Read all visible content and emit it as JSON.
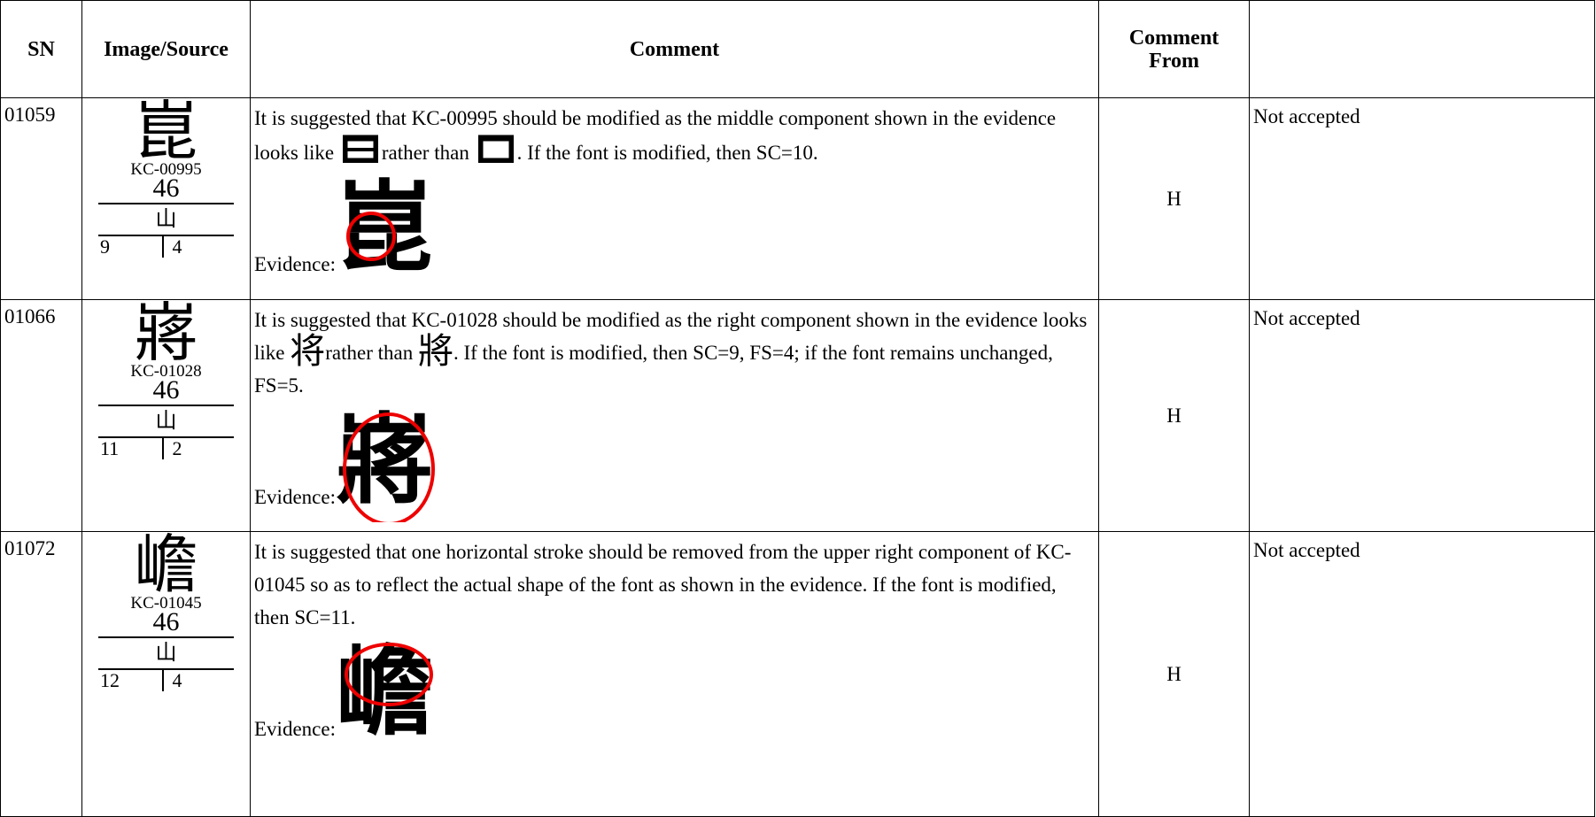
{
  "table": {
    "headers": [
      "SN",
      "Image/Source",
      "Comment",
      "Comment From"
    ],
    "rows": [
      {
        "sn": "01059",
        "glyph": "崑",
        "source": "KC-00995",
        "radical_number": 46,
        "radical": "山",
        "strokes": [
          9,
          4
        ],
        "comment_before": "It is suggested that KC-00995 should be modified as the middle component shown in the evidence looks like",
        "comment_middle": "rather than",
        "comment_after": ".  If the font is modified, then SC=10.",
        "evidence_label": "Evidence:",
        "evidence_glyph": "崑",
        "comment_from": "H",
        "status": "Not accepted"
      },
      {
        "sn": "01066",
        "glyph": "嶈",
        "source": "KC-01028",
        "radical_number": 46,
        "radical": "山",
        "strokes": [
          11,
          2
        ],
        "comment_before": "It is suggested that KC-01028 should be modified as the right component shown in the evidence looks like",
        "compare_glyphs": [
          "将",
          "將"
        ],
        "comment_middle": "rather than",
        "comment_after": ".  If the font is modified, then SC=9, FS=4; if the font remains unchanged, FS=5.",
        "evidence_label": "Evidence:",
        "evidence_glyph": "嶈",
        "comment_from": "H",
        "status": "Not accepted"
      },
      {
        "sn": "01072",
        "glyph": "嶦",
        "source": "KC-01045",
        "radical_number": 46,
        "radical": "山",
        "strokes": [
          12,
          4
        ],
        "comment_before": "It is suggested that one horizontal stroke should be removed from the upper right component of KC-01045 so as to reflect the actual shape of the font as shown in the evidence.  If the font is modified, then SC=11.",
        "evidence_label": "Evidence:",
        "evidence_glyph": "嶦",
        "comment_from": "H",
        "status": "Not accepted"
      }
    ]
  }
}
